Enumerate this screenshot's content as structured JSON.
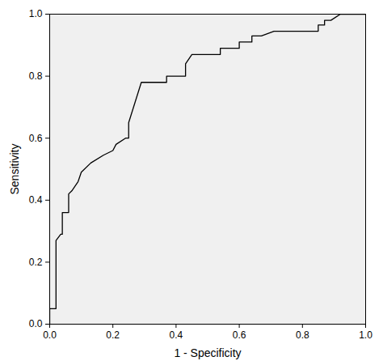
{
  "chart_data": {
    "type": "line",
    "xlabel": "1 - Specificity",
    "ylabel": "Sensitivity",
    "x": [
      0,
      0,
      0.02,
      0.02,
      0.035,
      0.04,
      0.04,
      0.06,
      0.06,
      0.07,
      0.09,
      0.1,
      0.13,
      0.17,
      0.2,
      0.21,
      0.24,
      0.25,
      0.25,
      0.29,
      0.37,
      0.37,
      0.43,
      0.43,
      0.45,
      0.54,
      0.54,
      0.6,
      0.6,
      0.64,
      0.64,
      0.67,
      0.71,
      0.85,
      0.85,
      0.87,
      0.87,
      0.89,
      0.92,
      1
    ],
    "values": [
      0,
      0.05,
      0.05,
      0.27,
      0.29,
      0.29,
      0.36,
      0.36,
      0.42,
      0.43,
      0.46,
      0.49,
      0.52,
      0.545,
      0.56,
      0.58,
      0.6,
      0.6,
      0.65,
      0.78,
      0.78,
      0.8,
      0.8,
      0.84,
      0.87,
      0.87,
      0.89,
      0.89,
      0.91,
      0.91,
      0.93,
      0.93,
      0.945,
      0.945,
      0.965,
      0.965,
      0.98,
      0.98,
      1,
      1
    ],
    "color": "#000000",
    "xlim": [
      0,
      1
    ],
    "ylim": [
      0,
      1
    ],
    "xticks": [
      {
        "value": 0,
        "label": "0.0"
      },
      0.2,
      0.4,
      0.6,
      0.8,
      {
        "value": 1,
        "label": "1.0"
      }
    ],
    "yticks": [
      {
        "value": 0,
        "label": "0.0"
      },
      0.2,
      0.4,
      0.6,
      0.8,
      {
        "value": 1,
        "label": "1.0"
      }
    ],
    "grid": false
  }
}
